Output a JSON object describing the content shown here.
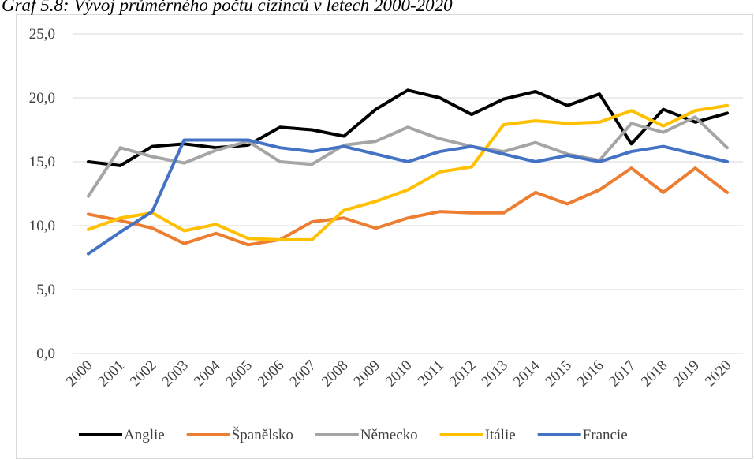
{
  "chart_data": {
    "type": "line",
    "title": "Graf 5.8: Vývoj průměrného počtu cizinců v letech 2000-2020",
    "categories": [
      "2000",
      "2001",
      "2002",
      "2003",
      "2004",
      "2005",
      "2006",
      "2007",
      "2008",
      "2009",
      "2010",
      "2011",
      "2012",
      "2013",
      "2014",
      "2015",
      "2016",
      "2017",
      "2018",
      "2019",
      "2020"
    ],
    "series": [
      {
        "name": "Anglie",
        "color": "#000000",
        "values": [
          15.0,
          14.7,
          16.2,
          16.4,
          16.1,
          16.3,
          17.7,
          17.5,
          17.0,
          19.1,
          20.6,
          20.0,
          18.7,
          19.9,
          20.5,
          19.4,
          20.3,
          16.4,
          19.1,
          18.1,
          18.8
        ]
      },
      {
        "name": "Španělsko",
        "color": "#ed7d31",
        "values": [
          10.9,
          10.4,
          9.8,
          8.6,
          9.4,
          8.5,
          8.9,
          10.3,
          10.6,
          9.8,
          10.6,
          11.1,
          11.0,
          11.0,
          12.6,
          11.7,
          12.8,
          14.5,
          12.6,
          14.5,
          12.6
        ]
      },
      {
        "name": "Německo",
        "color": "#a5a5a5",
        "values": [
          12.3,
          16.1,
          15.4,
          14.9,
          15.9,
          16.6,
          15.0,
          14.8,
          16.3,
          16.6,
          17.7,
          16.8,
          16.2,
          15.8,
          16.5,
          15.6,
          15.1,
          18.0,
          17.3,
          18.5,
          16.1
        ]
      },
      {
        "name": "Itálie",
        "color": "#ffc000",
        "values": [
          9.7,
          10.6,
          11.0,
          9.6,
          10.1,
          9.0,
          8.9,
          8.9,
          11.2,
          11.9,
          12.8,
          14.2,
          14.6,
          17.9,
          18.2,
          18.0,
          18.1,
          19.0,
          17.8,
          19.0,
          19.4
        ]
      },
      {
        "name": "Francie",
        "color": "#4472c4",
        "values": [
          7.8,
          9.5,
          11.1,
          16.7,
          16.7,
          16.7,
          16.1,
          15.8,
          16.2,
          15.6,
          15.0,
          15.8,
          16.2,
          15.6,
          15.0,
          15.5,
          15.0,
          15.8,
          16.2,
          15.6,
          15.0
        ]
      }
    ],
    "ylim": [
      0,
      25
    ],
    "yticks": [
      {
        "value": 0,
        "label": "0,0"
      },
      {
        "value": 5,
        "label": "5,0"
      },
      {
        "value": 10,
        "label": "10,0"
      },
      {
        "value": 15,
        "label": "15,0"
      },
      {
        "value": 20,
        "label": "20,0"
      },
      {
        "value": 25,
        "label": "25,0"
      }
    ],
    "grid": true,
    "legend": "bottom"
  }
}
